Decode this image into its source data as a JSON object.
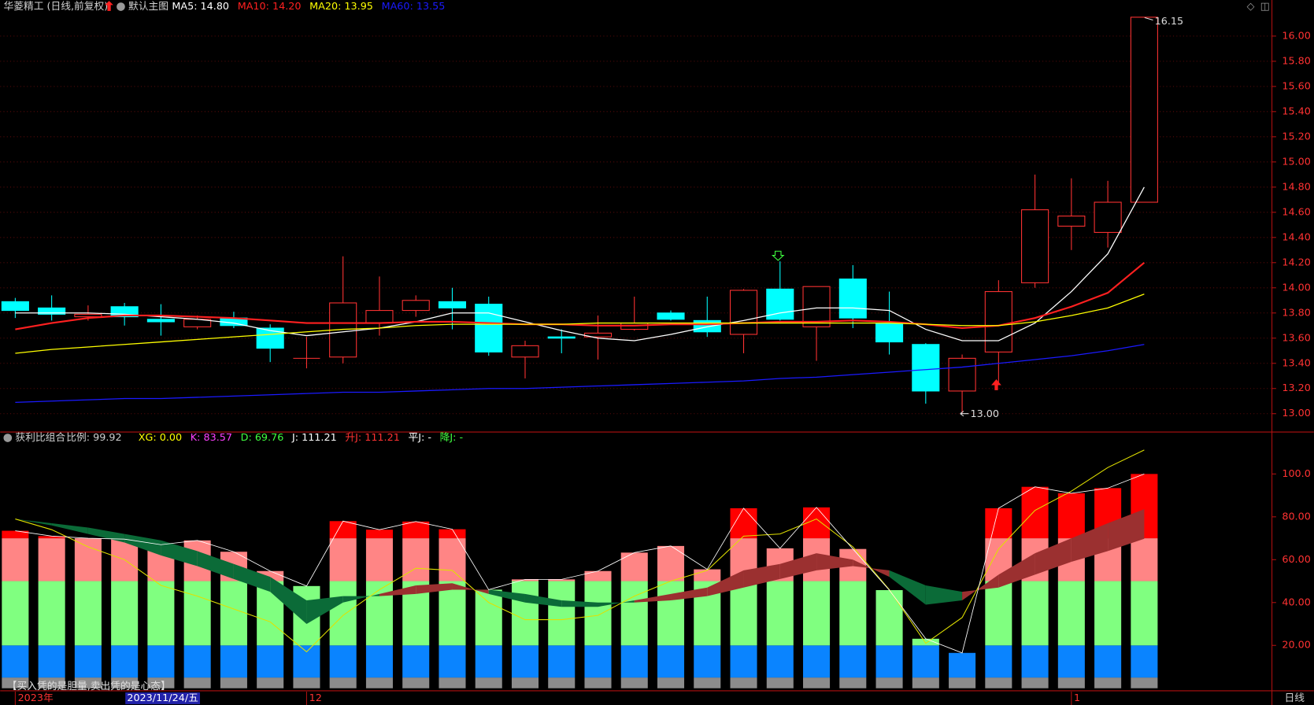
{
  "chart_data": [
    {
      "type": "candlestick",
      "title": "华菱精工 (日线,前复权)",
      "subtitle": "默认主图",
      "categories": [
        "2023年",
        null,
        null,
        "2023/11/24/五",
        null,
        null,
        null,
        null,
        "12",
        null,
        null,
        null,
        null,
        null,
        null,
        null,
        null,
        null,
        null,
        null,
        null,
        null,
        null,
        null,
        null,
        null,
        null,
        null,
        null,
        "1",
        null,
        null
      ],
      "selected": 3,
      "x_unit": "日线",
      "open": [
        13.89,
        13.84,
        13.77,
        13.85,
        13.75,
        13.69,
        13.76,
        13.68,
        13.44,
        13.45,
        13.72,
        13.82,
        13.89,
        13.87,
        13.45,
        13.61,
        13.61,
        13.67,
        13.8,
        13.74,
        13.63,
        13.99,
        13.69,
        14.07,
        13.72,
        13.55,
        13.18,
        13.49,
        14.04,
        14.49,
        14.44,
        14.68
      ],
      "high": [
        13.92,
        13.94,
        13.86,
        13.88,
        13.87,
        13.78,
        13.81,
        13.71,
        13.61,
        14.25,
        14.09,
        13.94,
        14.0,
        13.93,
        13.58,
        13.67,
        13.78,
        13.93,
        13.82,
        13.93,
        13.99,
        14.21,
        14.01,
        14.18,
        13.97,
        13.56,
        13.47,
        14.06,
        14.9,
        14.87,
        14.85,
        16.15
      ],
      "low": [
        13.76,
        13.74,
        13.74,
        13.7,
        13.62,
        13.67,
        13.68,
        13.41,
        13.36,
        13.4,
        13.62,
        13.77,
        13.67,
        13.46,
        13.28,
        13.48,
        13.43,
        13.66,
        13.74,
        13.61,
        13.48,
        13.74,
        13.42,
        13.68,
        13.47,
        13.08,
        13.0,
        13.25,
        14.0,
        14.3,
        14.32,
        14.68
      ],
      "close": [
        13.82,
        13.79,
        13.79,
        13.77,
        13.73,
        13.75,
        13.7,
        13.52,
        13.44,
        13.88,
        13.82,
        13.9,
        13.84,
        13.49,
        13.54,
        13.6,
        13.64,
        13.72,
        13.75,
        13.65,
        13.98,
        13.75,
        14.01,
        13.76,
        13.57,
        13.18,
        13.44,
        13.97,
        14.62,
        14.57,
        14.68,
        16.15
      ],
      "up_color": "#ff3232",
      "down_color": "#00ffff",
      "series": [
        {
          "name": "MA5: 14.80",
          "color": "#ffffff",
          "values": [
            13.8,
            13.8,
            13.8,
            13.79,
            13.77,
            13.75,
            13.72,
            13.66,
            13.62,
            13.65,
            13.68,
            13.73,
            13.8,
            13.8,
            13.73,
            13.66,
            13.6,
            13.58,
            13.63,
            13.69,
            13.74,
            13.8,
            13.84,
            13.84,
            13.82,
            13.67,
            13.58,
            13.58,
            13.72,
            13.97,
            14.27,
            14.8
          ]
        },
        {
          "name": "MA10: 14.20",
          "color": "#ff2020",
          "values": [
            13.67,
            13.72,
            13.76,
            13.78,
            13.78,
            13.77,
            13.76,
            13.74,
            13.72,
            13.72,
            13.72,
            13.73,
            13.73,
            13.72,
            13.71,
            13.71,
            13.7,
            13.7,
            13.71,
            13.71,
            13.72,
            13.73,
            13.73,
            13.74,
            13.73,
            13.71,
            13.68,
            13.7,
            13.76,
            13.85,
            13.96,
            14.2
          ]
        },
        {
          "name": "MA20: 13.95",
          "color": "#ffff00",
          "values": [
            13.48,
            13.51,
            13.53,
            13.55,
            13.57,
            13.59,
            13.61,
            13.63,
            13.65,
            13.67,
            13.68,
            13.7,
            13.71,
            13.71,
            13.71,
            13.71,
            13.72,
            13.72,
            13.72,
            13.72,
            13.72,
            13.72,
            13.72,
            13.72,
            13.72,
            13.71,
            13.7,
            13.7,
            13.73,
            13.78,
            13.84,
            13.95
          ]
        },
        {
          "name": "MA60: 13.55",
          "color": "#1a1aff",
          "values": [
            13.09,
            13.1,
            13.11,
            13.12,
            13.12,
            13.13,
            13.14,
            13.15,
            13.16,
            13.17,
            13.17,
            13.18,
            13.19,
            13.2,
            13.2,
            13.21,
            13.22,
            13.23,
            13.24,
            13.25,
            13.26,
            13.28,
            13.29,
            13.31,
            13.33,
            13.35,
            13.37,
            13.4,
            13.43,
            13.46,
            13.5,
            13.55
          ]
        }
      ],
      "annotations": [
        {
          "text": "16.15"
        },
        {
          "text": "13.00"
        }
      ],
      "ylim": [
        12.854,
        16.167
      ],
      "yticks": [
        {
          "value": 13,
          "label": "13.00"
        },
        {
          "value": 13.2,
          "label": "13.20"
        },
        {
          "value": 13.4,
          "label": "13.40"
        },
        {
          "value": 13.6,
          "label": "13.60"
        },
        {
          "value": 13.8,
          "label": "13.80"
        },
        {
          "value": 14,
          "label": "14.00"
        },
        {
          "value": 14.2,
          "label": "14.20"
        },
        {
          "value": 14.4,
          "label": "14.40"
        },
        {
          "value": 14.6,
          "label": "14.60"
        },
        {
          "value": 14.8,
          "label": "14.80"
        },
        {
          "value": 15,
          "label": "15.00"
        },
        {
          "value": 15.2,
          "label": "15.20"
        },
        {
          "value": 15.4,
          "label": "15.40"
        },
        {
          "value": 15.6,
          "label": "15.60"
        },
        {
          "value": 15.8,
          "label": "15.80"
        },
        {
          "value": 16,
          "label": "16.00"
        }
      ],
      "grid": true
    },
    {
      "type": "profit-ratio",
      "title": "获利比组合",
      "subtitle": "比例: 99.92",
      "legend": [
        {
          "text": "XG: 0.00",
          "color": "#ffff00"
        },
        {
          "text": "K: 83.57",
          "color": "#ff40ff"
        },
        {
          "text": "D: 69.76",
          "color": "#40ff40"
        },
        {
          "text": "J: 111.21",
          "color": "#ffffff"
        },
        {
          "text": "升J: 111.21",
          "color": "#ff3232"
        },
        {
          "text": "平J: -",
          "color": "#ffffff"
        },
        {
          "text": "降J: -",
          "color": "#40ff40"
        }
      ],
      "values": [
        73.5,
        71,
        70,
        69.6,
        67,
        69,
        63.7,
        54.7,
        47.7,
        78,
        74,
        77.8,
        74.2,
        46,
        50.8,
        50.8,
        54.7,
        63.3,
        66.4,
        55.5,
        84,
        65.3,
        84.4,
        65,
        45.8,
        23.1,
        16.5,
        84,
        94,
        91,
        93.4,
        100
      ],
      "bands": [
        {
          "to": 5,
          "color": "#8c8c8c"
        },
        {
          "to": 20,
          "color": "#0a84ff"
        },
        {
          "to": 50,
          "color": "#80ff80"
        },
        {
          "to": 70,
          "color": "#ff8585"
        },
        {
          "to": 100,
          "color": "#ff0000"
        }
      ],
      "series": [
        {
          "name": "K",
          "values": [
            79,
            76,
            72,
            68,
            62,
            57,
            51,
            45,
            30,
            40,
            44,
            48,
            49,
            44,
            40,
            38,
            38,
            41,
            44,
            47,
            55,
            58,
            63,
            60,
            52,
            39,
            41,
            53,
            63,
            70,
            77,
            83.57
          ]
        },
        {
          "name": "D",
          "values": [
            79,
            77,
            75,
            72,
            69,
            64,
            58,
            52,
            41,
            43,
            43,
            44,
            46,
            46,
            44,
            41,
            40,
            40,
            41,
            43,
            47,
            51,
            55,
            57,
            55,
            48,
            45,
            47,
            53,
            59,
            64,
            69.76
          ]
        },
        {
          "name": "J",
          "color": "#e0e000",
          "values": [
            79,
            74,
            66,
            60,
            48,
            43,
            37,
            31,
            17,
            34,
            46,
            56,
            55,
            40,
            32,
            32,
            34,
            43,
            50,
            55,
            71,
            72,
            79,
            66,
            46,
            21,
            33,
            65,
            83,
            92,
            103,
            111.21
          ]
        }
      ],
      "rise_color": "#9b3030",
      "fall_color": "#0b6b38",
      "ylim": [
        0,
        118
      ],
      "yticks": [
        {
          "value": 20,
          "label": "20.00"
        },
        {
          "value": 40,
          "label": "40.00"
        },
        {
          "value": 60,
          "label": "60.00"
        },
        {
          "value": 80,
          "label": "80.00"
        },
        {
          "value": 100,
          "label": "100.0"
        }
      ]
    }
  ],
  "footer": "【买入凭的是胆量,卖出凭的是心态】"
}
